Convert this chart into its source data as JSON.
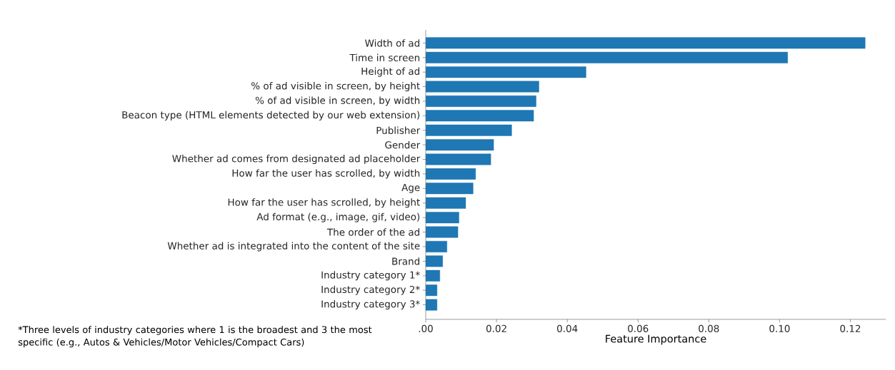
{
  "chart_data": {
    "type": "bar",
    "orientation": "horizontal",
    "xlabel": "Feature Importance",
    "categories": [
      "Width of ad",
      "Time in screen",
      "Height of ad",
      "% of ad visible in screen, by height",
      "% of ad visible in screen, by width",
      "Beacon type (HTML elements detected by our web extension)",
      "Publisher",
      "Gender",
      "Whether ad comes from designated ad placeholder",
      "How far the user has scrolled, by width",
      "Age",
      "How far the user has scrolled, by height",
      "Ad format (e.g., image, gif, video)",
      "The order of the ad",
      "Whether ad is integrated into the content of the site",
      "Brand",
      "Industry category 1*",
      "Industry category 2*",
      "Industry category 3*"
    ],
    "values": [
      0.1242,
      0.1023,
      0.0453,
      0.032,
      0.0312,
      0.0305,
      0.0243,
      0.0192,
      0.0184,
      0.0141,
      0.0134,
      0.0113,
      0.0094,
      0.0091,
      0.006,
      0.0048,
      0.004,
      0.0032,
      0.0032
    ],
    "color": "#1f77b4",
    "grid": false,
    "xlim": [
      0,
      0.13
    ],
    "xticks": [
      {
        "value": 0,
        "label": ".00"
      },
      0.02,
      0.04,
      0.06,
      0.08,
      {
        "value": 0.1,
        "label": "0.10"
      },
      0.12
    ],
    "annotations": [
      "*Three levels of industry categories where 1 is the broadest and 3 the most specific (e.g., Autos & Vehicles/Motor Vehicles/Compact Cars)"
    ]
  }
}
